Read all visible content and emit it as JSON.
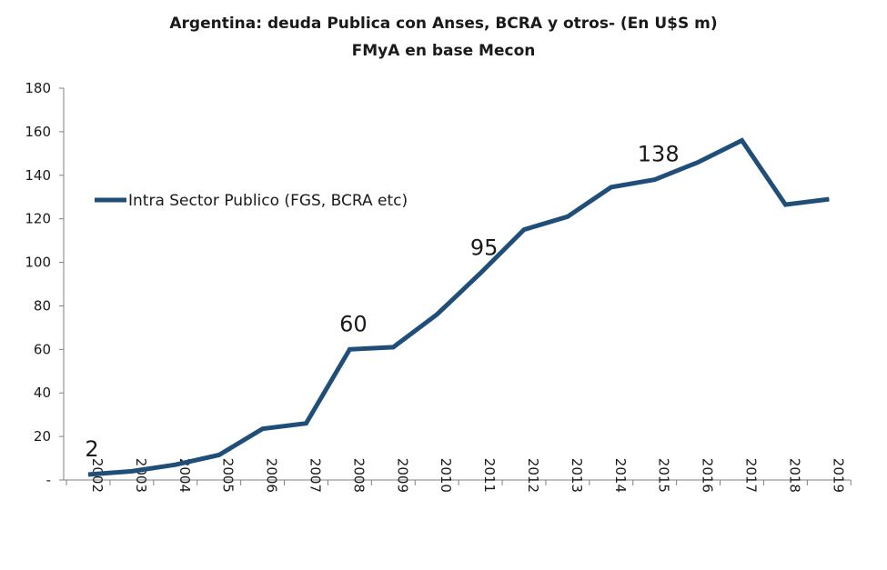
{
  "chart_data": {
    "type": "line",
    "title": "Argentina: deuda Publica con Anses, BCRA y otros- (En U$S m)",
    "subtitle": "FMyA en base Mecon",
    "categories": [
      "2002",
      "2003",
      "2004",
      "2005",
      "2006",
      "2007",
      "2008",
      "2009",
      "2010",
      "2011",
      "2012",
      "2013",
      "2014",
      "2015",
      "2016",
      "2017",
      "2018",
      "2019"
    ],
    "series": [
      {
        "name": "Intra Sector Publico (FGS, BCRA etc)",
        "values": [
          2.5,
          4,
          7,
          11.5,
          23.5,
          26,
          60,
          61,
          76,
          95,
          115,
          121,
          134.5,
          138,
          146,
          156,
          126.5,
          129
        ],
        "color": "#1f4e79"
      }
    ],
    "ylim": [
      0,
      180
    ],
    "yticks": [
      0,
      20,
      40,
      60,
      80,
      100,
      120,
      140,
      160,
      180
    ],
    "ytick_labels": [
      "-",
      "20",
      "40",
      "60",
      "80",
      "100",
      "120",
      "140",
      "160",
      "180"
    ],
    "data_labels": [
      {
        "category": "2002",
        "text": "2"
      },
      {
        "category": "2008",
        "text": "60"
      },
      {
        "category": "2011",
        "text": "95"
      },
      {
        "category": "2015",
        "text": "138"
      }
    ],
    "legend_position": "left",
    "grid": false
  }
}
